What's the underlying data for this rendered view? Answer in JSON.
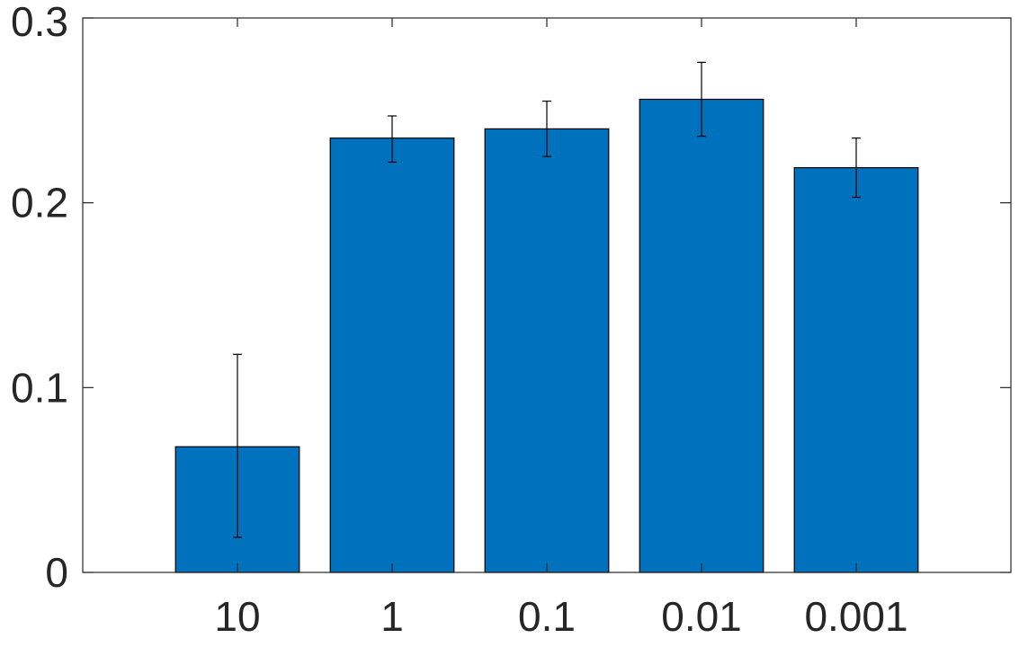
{
  "chart_data": {
    "type": "bar",
    "categories": [
      "10",
      "1",
      "0.1",
      "0.01",
      "0.001"
    ],
    "values": [
      0.068,
      0.235,
      0.24,
      0.256,
      0.219
    ],
    "error_low": [
      0.019,
      0.222,
      0.225,
      0.236,
      0.203
    ],
    "error_high": [
      0.118,
      0.247,
      0.255,
      0.276,
      0.235
    ],
    "ylim": [
      0,
      0.3
    ],
    "yticks": [
      "0",
      "0.1",
      "0.2",
      "0.3"
    ],
    "grid": false,
    "bar_color": "#0072BD",
    "axis_color": "#262626"
  }
}
